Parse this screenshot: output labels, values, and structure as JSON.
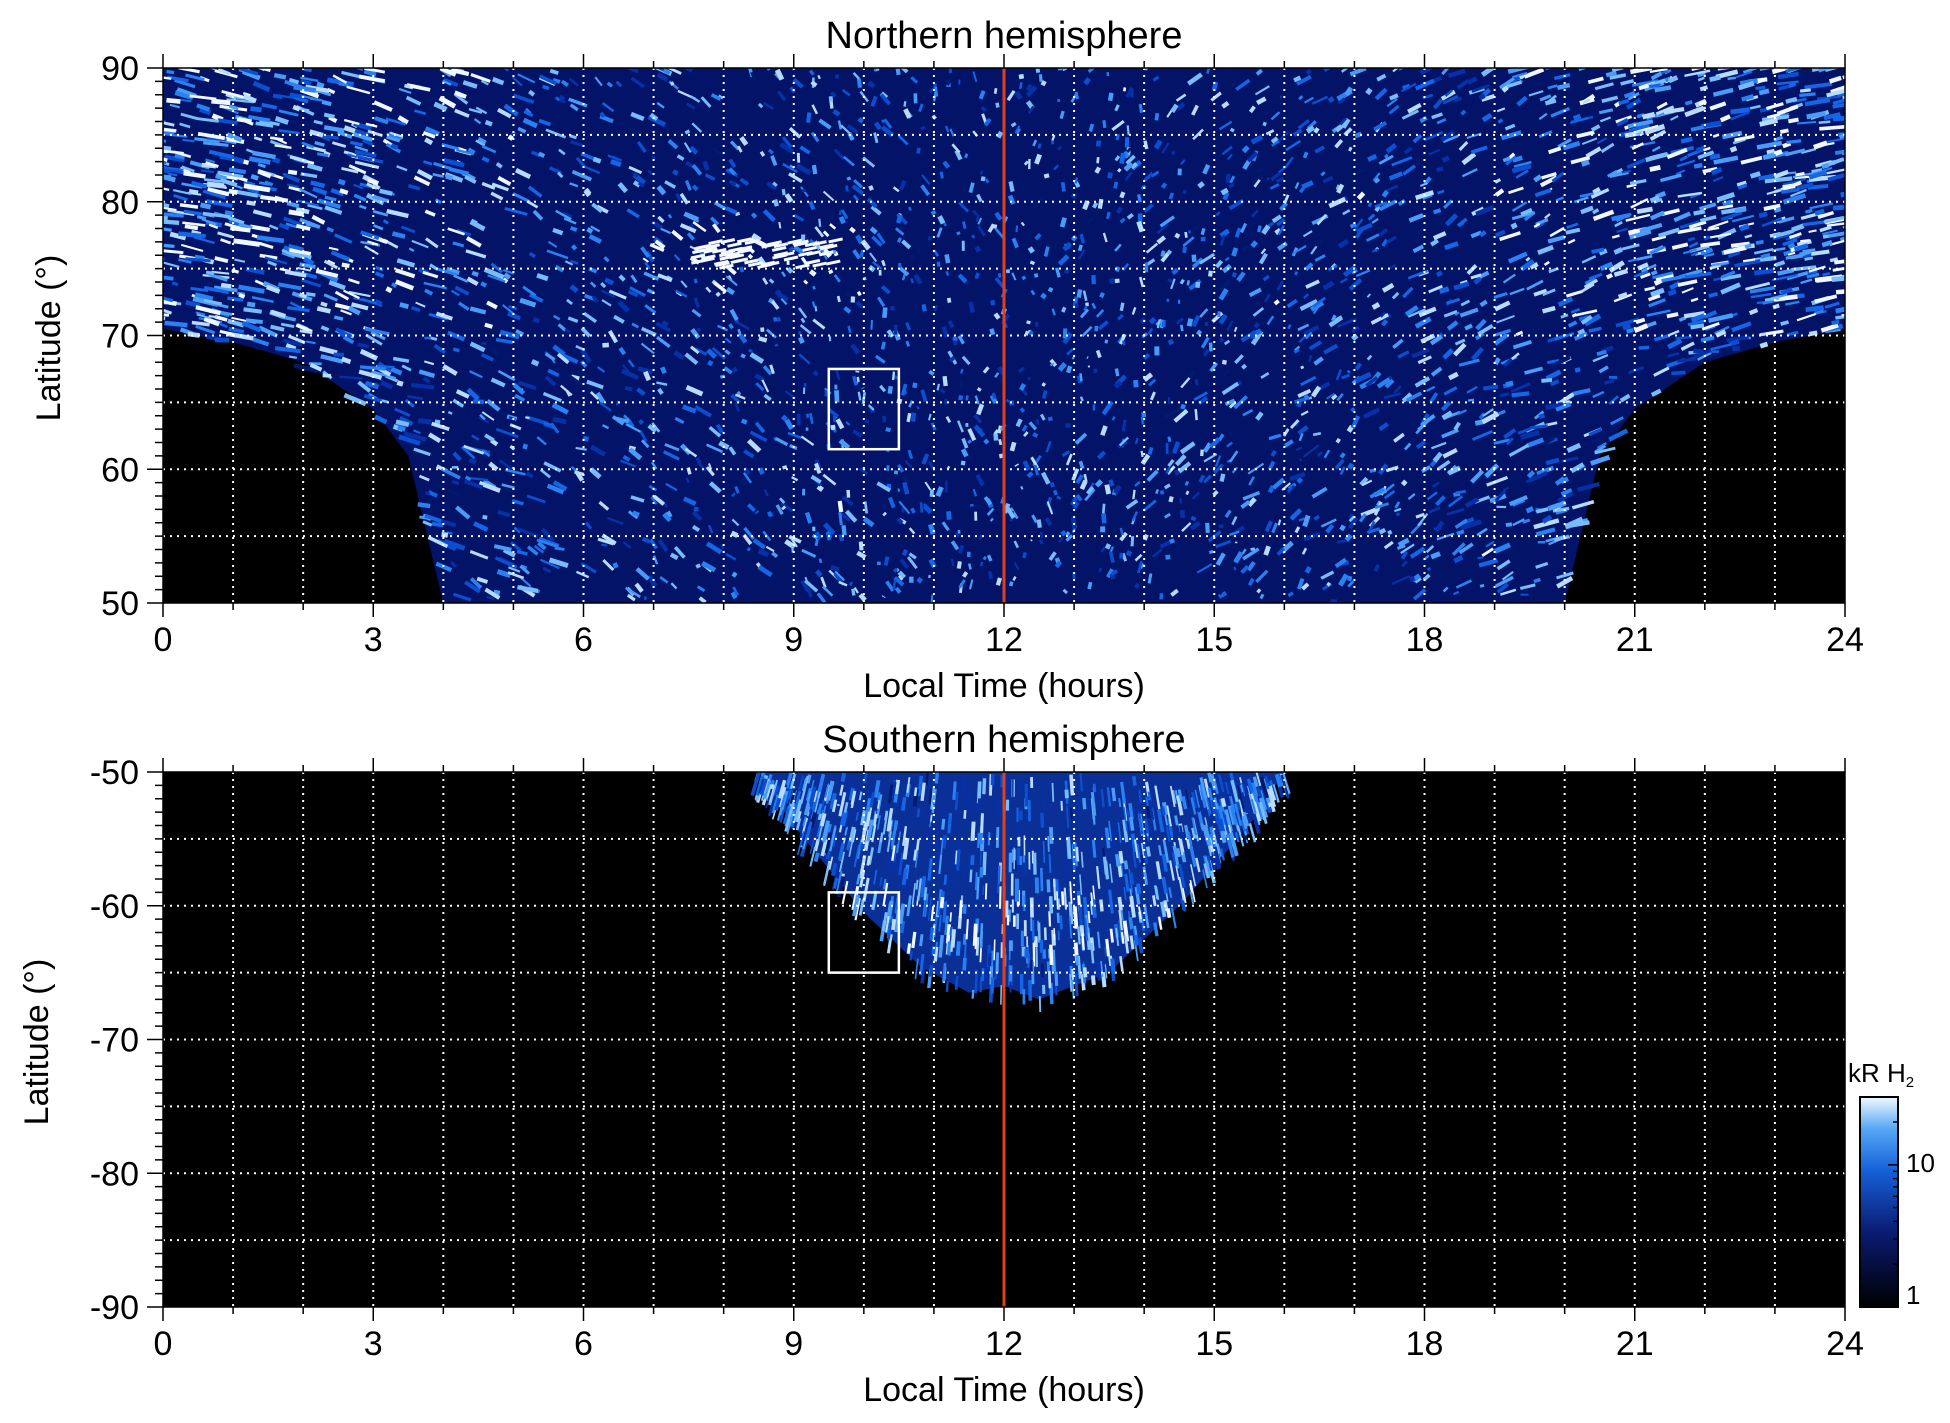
{
  "chart_data": [
    {
      "type": "heatmap",
      "title": "Northern hemisphere",
      "xlabel": "Local Time (hours)",
      "ylabel": "Latitude (°)",
      "xlim": [
        0,
        24
      ],
      "ylim": [
        50,
        90
      ],
      "x_ticks": [
        "0",
        "3",
        "6",
        "9",
        "12",
        "15",
        "18",
        "21",
        "24"
      ],
      "y_ticks": [
        "50",
        "60",
        "70",
        "80",
        "90"
      ],
      "grid": true,
      "noon_line_local_time": 12,
      "box": {
        "local_time": [
          9.5,
          10.5
        ],
        "latitude": [
          61.5,
          67.5
        ]
      },
      "coverage_lower_edge_latitude": [
        [
          0,
          70.5
        ],
        [
          1,
          69.5
        ],
        [
          2,
          68
        ],
        [
          3,
          64.5
        ],
        [
          3.5,
          61
        ],
        [
          4,
          50
        ],
        [
          20,
          50
        ],
        [
          20.5,
          61
        ],
        [
          21,
          64.5
        ],
        [
          22,
          68
        ],
        [
          23,
          69.5
        ],
        [
          24,
          70.5
        ]
      ],
      "bright_arc": {
        "local_time": [
          7.5,
          9.5
        ],
        "latitude": [
          75,
          77
        ]
      }
    },
    {
      "type": "heatmap",
      "title": "Southern hemisphere",
      "xlabel": "Local Time (hours)",
      "ylabel": "Latitude (°)",
      "xlim": [
        0,
        24
      ],
      "ylim": [
        -90,
        -50
      ],
      "x_ticks": [
        "0",
        "3",
        "6",
        "9",
        "12",
        "15",
        "18",
        "21",
        "24"
      ],
      "y_ticks": [
        "-50",
        "-60",
        "-70",
        "-80",
        "-90"
      ],
      "grid": true,
      "noon_line_local_time": 12,
      "box": {
        "local_time": [
          9.5,
          10.5
        ],
        "latitude": [
          -65,
          -59
        ]
      },
      "coverage_outline": [
        [
          8.5,
          -50
        ],
        [
          9,
          -54
        ],
        [
          10,
          -60.5
        ],
        [
          10.8,
          -64.5
        ],
        [
          11.5,
          -66.5
        ],
        [
          12,
          -66
        ],
        [
          12.5,
          -67
        ],
        [
          13.5,
          -65
        ],
        [
          14.5,
          -60
        ],
        [
          15.5,
          -54
        ],
        [
          16,
          -50
        ]
      ],
      "colorbar": {
        "unit_label": "kR H",
        "unit_subscript": "2",
        "ticks": [
          "10",
          "1"
        ],
        "scale": "log",
        "range": [
          1,
          30
        ]
      }
    }
  ]
}
